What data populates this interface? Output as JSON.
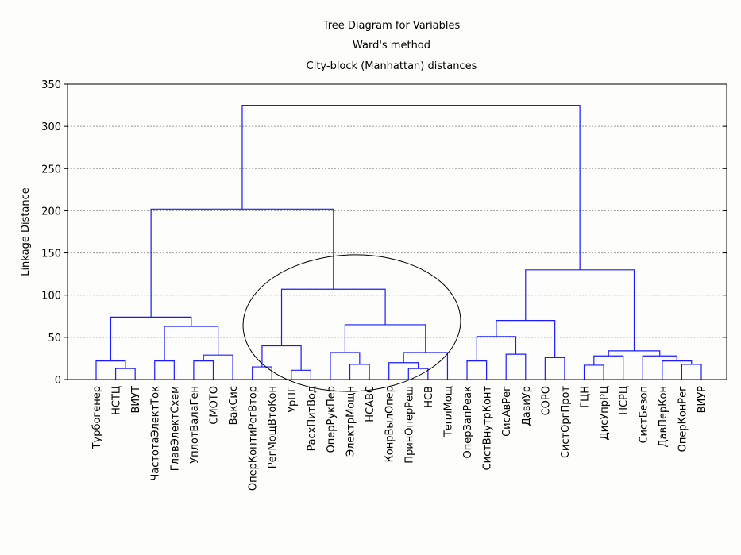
{
  "chart_data": {
    "type": "dendrogram",
    "title": "Tree Diagram for  Variables",
    "subtitle": "Ward's method",
    "subtitle2": "City-block (Manhattan) distances",
    "ylabel": "Linkage Distance",
    "ylim": [
      0,
      350
    ],
    "yticks": [
      0,
      50,
      100,
      150,
      200,
      250,
      300,
      350
    ],
    "grid": true,
    "color": "#1a1aff",
    "tree": {
      "height": 325,
      "children": [
        {
          "height": 202,
          "children": [
            {
              "height": 74,
              "children": [
                {
                  "height": 22,
                  "children": [
                    "Турбогенер",
                    {
                      "height": 13,
                      "children": [
                        "НСТЦ",
                        "ВИУТ"
                      ]
                    }
                  ]
                },
                {
                  "height": 63,
                  "children": [
                    {
                      "height": 22,
                      "children": [
                        "ЧастотаЭлектТок",
                        "ГлавЭлектСхем"
                      ]
                    },
                    {
                      "height": 29,
                      "children": [
                        {
                          "height": 22,
                          "children": [
                            "УплотВалаГен",
                            "СМОТО"
                          ]
                        },
                        "ВакСис"
                      ]
                    }
                  ]
                }
              ]
            },
            {
              "height": 107,
              "children": [
                {
                  "height": 40,
                  "children": [
                    {
                      "height": 15,
                      "children": [
                        "ОперКонтиРегВтор",
                        "РегМощВтоКон"
                      ]
                    },
                    {
                      "height": 11,
                      "children": [
                        "УрПГ",
                        "РасхПитВод"
                      ]
                    }
                  ]
                },
                {
                  "height": 65,
                  "children": [
                    {
                      "height": 32,
                      "children": [
                        "ОперРукПер",
                        {
                          "height": 18,
                          "children": [
                            "ЭлектрМощн",
                            "НСАВС"
                          ]
                        }
                      ]
                    },
                    {
                      "height": 32,
                      "children": [
                        {
                          "height": 20,
                          "children": [
                            "КонрВылОпер",
                            {
                              "height": 13,
                              "children": [
                                "ПринОперРеш",
                                "НСВ"
                              ]
                            }
                          ]
                        },
                        "ТеплМощ"
                      ]
                    }
                  ]
                }
              ]
            }
          ]
        },
        {
          "height": 130,
          "children": [
            {
              "height": 70,
              "children": [
                {
                  "height": 51,
                  "children": [
                    {
                      "height": 22,
                      "children": [
                        "ОперЗапРеак",
                        "СистВнутрКонт"
                      ]
                    },
                    {
                      "height": 30,
                      "children": [
                        "СисАвРег",
                        "ДавиУр"
                      ]
                    }
                  ]
                },
                {
                  "height": 26,
                  "children": [
                    "СОРО",
                    "СистОргПрот"
                  ]
                }
              ]
            },
            {
              "height": 34,
              "children": [
                {
                  "height": 28,
                  "children": [
                    {
                      "height": 17,
                      "children": [
                        "ГЦН",
                        "ДисУпрРЦ"
                      ]
                    },
                    "НСРЦ"
                  ]
                },
                {
                  "height": 28,
                  "children": [
                    "СистБезоп",
                    {
                      "height": 22,
                      "children": [
                        "ДавПерКон",
                        {
                          "height": 18,
                          "children": [
                            "ОперКонРег",
                            "ВИУР"
                          ]
                        }
                      ]
                    }
                  ]
                }
              ]
            }
          ]
        }
      ]
    }
  }
}
